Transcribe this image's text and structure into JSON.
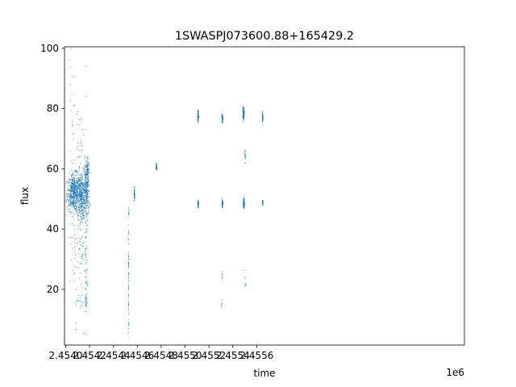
{
  "chart_data": {
    "type": "scatter",
    "title": "1SWASPJ073600.88+165429.2",
    "xlabel": "time",
    "ylabel": "flux",
    "x_offset_label": "1e6",
    "xlim": [
      2453990,
      2457340
    ],
    "ylim": [
      1.5,
      100.5
    ],
    "grid": false,
    "point_color": "#1f77b4",
    "x_ticks": [
      {
        "value": 2454000,
        "label": "2.4540"
      },
      {
        "value": 2454200,
        "label": "2.4542"
      },
      {
        "value": 2454400,
        "label": "2.4544"
      },
      {
        "value": 2454600,
        "label": "2.4546"
      },
      {
        "value": 2454800,
        "label": "2.4548"
      },
      {
        "value": 2455000,
        "label": "2.4550"
      },
      {
        "value": 2455200,
        "label": "2.4552"
      },
      {
        "value": 2455400,
        "label": "2.4554"
      },
      {
        "value": 2455600,
        "label": "2.4556"
      }
    ],
    "y_ticks": [
      {
        "value": 20,
        "label": "20"
      },
      {
        "value": 40,
        "label": "40"
      },
      {
        "value": 60,
        "label": "60"
      },
      {
        "value": 80,
        "label": "80"
      },
      {
        "value": 100,
        "label": "100"
      }
    ],
    "clusters": [
      {
        "x": 2454068,
        "y": 52.0,
        "xs": 28,
        "ys": 3.0,
        "n": 520
      },
      {
        "x": 2454130,
        "y": 51.0,
        "xs": 18,
        "ys": 4.0,
        "n": 320
      },
      {
        "x": 2454175,
        "y": 53.0,
        "xs": 12,
        "ys": 5.0,
        "n": 260
      },
      {
        "x": 2454185,
        "y": 59.0,
        "xs": 6,
        "ys": 2.0,
        "n": 60
      },
      {
        "x": 2454085,
        "y": 40.0,
        "xs": 25,
        "ys": 14.0,
        "n": 70
      },
      {
        "x": 2454140,
        "y": 35.0,
        "xs": 25,
        "ys": 12.0,
        "n": 60
      },
      {
        "x": 2454170,
        "y": 25.0,
        "xs": 6,
        "ys": 9.0,
        "n": 40
      },
      {
        "x": 2454170,
        "y": 16.0,
        "xs": 6,
        "ys": 1.5,
        "n": 25
      },
      {
        "x": 2454095,
        "y": 16.0,
        "xs": 10,
        "ys": 1.0,
        "n": 8
      },
      {
        "x": 2454130,
        "y": 15.0,
        "xs": 8,
        "ys": 0.8,
        "n": 6
      },
      {
        "x": 2454055,
        "y": 75.0,
        "xs": 10,
        "ys": 10.0,
        "n": 22
      },
      {
        "x": 2454120,
        "y": 68.0,
        "xs": 20,
        "ys": 6.0,
        "n": 25
      },
      {
        "x": 2454527,
        "y": 27.0,
        "xs": 1.5,
        "ys": 8.0,
        "n": 60
      },
      {
        "x": 2454527,
        "y": 10.0,
        "xs": 1.5,
        "ys": 3.0,
        "n": 12
      },
      {
        "x": 2454527,
        "y": 44.0,
        "xs": 1.5,
        "ys": 2.0,
        "n": 10
      },
      {
        "x": 2454575,
        "y": 51.5,
        "xs": 1.5,
        "ys": 1.2,
        "n": 45
      },
      {
        "x": 2454760,
        "y": 60.5,
        "xs": 1.5,
        "ys": 0.6,
        "n": 45
      },
      {
        "x": 2455110,
        "y": 77.5,
        "xs": 2.0,
        "ys": 0.9,
        "n": 90
      },
      {
        "x": 2455110,
        "y": 48.5,
        "xs": 2.0,
        "ys": 0.7,
        "n": 70
      },
      {
        "x": 2455313,
        "y": 76.8,
        "xs": 2.0,
        "ys": 0.6,
        "n": 70
      },
      {
        "x": 2455313,
        "y": 48.5,
        "xs": 2.0,
        "ys": 0.7,
        "n": 60
      },
      {
        "x": 2455313,
        "y": 25.0,
        "xs": 1.5,
        "ys": 0.6,
        "n": 8
      },
      {
        "x": 2455307,
        "y": 15.5,
        "xs": 1.5,
        "ys": 0.6,
        "n": 7
      },
      {
        "x": 2455490,
        "y": 78.5,
        "xs": 3.0,
        "ys": 1.0,
        "n": 110
      },
      {
        "x": 2455493,
        "y": 48.5,
        "xs": 3.0,
        "ys": 0.9,
        "n": 90
      },
      {
        "x": 2455503,
        "y": 64.5,
        "xs": 1.5,
        "ys": 1.2,
        "n": 18
      },
      {
        "x": 2455503,
        "y": 22.0,
        "xs": 1.5,
        "ys": 1.2,
        "n": 10
      },
      {
        "x": 2455650,
        "y": 77.0,
        "xs": 1.5,
        "ys": 0.9,
        "n": 50
      },
      {
        "x": 2455650,
        "y": 49.0,
        "xs": 1.5,
        "ys": 0.4,
        "n": 30
      }
    ],
    "outliers": [
      {
        "x": 2454038,
        "y": 96.0
      },
      {
        "x": 2454040,
        "y": 88.0
      },
      {
        "x": 2454168,
        "y": 94.0
      },
      {
        "x": 2454168,
        "y": 84.0
      },
      {
        "x": 2454100,
        "y": 79.0
      },
      {
        "x": 2454028,
        "y": 37.0
      },
      {
        "x": 2454070,
        "y": 25.0
      },
      {
        "x": 2454526,
        "y": 6.0
      }
    ]
  }
}
